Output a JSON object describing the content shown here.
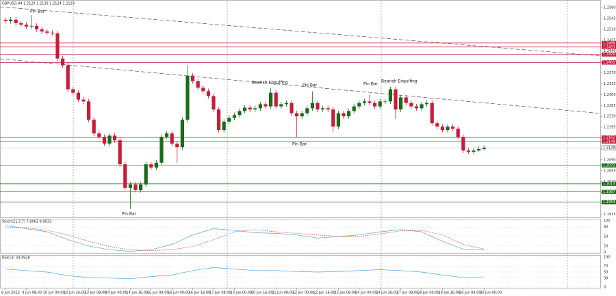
{
  "chart_data": [
    {
      "type": "candlestick",
      "title": "GBPUSD,H4  1.2129 1.2139 1.2124 1.2129",
      "categories": [
        "8 Jun 2022",
        null,
        null,
        null,
        "9 Jun 08:00",
        null,
        null,
        null,
        "10 Jun 00:00",
        null,
        null,
        null,
        "10 Jun 16:00",
        null,
        null,
        null,
        "13 Jun 08:00",
        null,
        null,
        null,
        "14 Jun 00:00",
        null,
        null,
        null,
        "14 Jun 16:00",
        null,
        null,
        null,
        "15 Jun 08:00",
        null,
        null,
        null,
        "16 Jun 00:00",
        null,
        null,
        null,
        "16 Jun 16:00",
        null,
        null,
        null,
        "17 Jun 08:00",
        null,
        null,
        null,
        "20 Jun 00:00",
        null,
        null,
        null,
        "20 Jun 16:00",
        null,
        null,
        null,
        "21 Jun 08:00",
        null,
        null,
        null,
        "22 Jun 00:00",
        null,
        null,
        null,
        "22 Jun 16:00",
        null,
        null,
        null,
        "23 Jun 08:00",
        null,
        null,
        null,
        "24 Jun 00:00",
        null,
        null,
        null,
        "24 Jun 16:00",
        null,
        null,
        null,
        "27 Jun 08:00",
        null,
        null,
        null,
        "28 Jun 00:00",
        null,
        null,
        null,
        "28 Jun 16:00",
        null,
        null,
        null,
        "29 Jun 08:00",
        null,
        null,
        null,
        "30 Jun 00:00"
      ],
      "open": [
        1.254,
        1.2536,
        1.2541,
        1.253,
        1.2525,
        1.2519,
        1.2521,
        1.251,
        1.2503,
        1.2499,
        1.2497,
        1.2416,
        1.2394,
        1.2317,
        1.2306,
        1.2284,
        1.2278,
        1.2219,
        1.2175,
        1.2164,
        1.2142,
        1.2168,
        1.2153,
        1.2076,
        1.2,
        1.2011,
        1.1993,
        1.2011,
        1.2076,
        1.2065,
        1.2081,
        1.2164,
        1.2175,
        1.2142,
        1.2131,
        1.2219,
        1.2361,
        1.2343,
        1.2322,
        1.2311,
        1.2295,
        1.2252,
        1.2186,
        1.2213,
        1.2225,
        1.2234,
        1.2247,
        1.2258,
        1.2252,
        1.2256,
        1.2269,
        1.2262,
        1.2306,
        1.2262,
        1.2269,
        1.2273,
        1.224,
        1.223,
        1.224,
        1.2256,
        1.2273,
        1.2252,
        1.2256,
        1.2252,
        1.2197,
        1.224,
        1.223,
        1.2247,
        1.2262,
        1.2273,
        1.2278,
        1.2273,
        1.2262,
        1.2278,
        1.2278,
        1.2317,
        1.2252,
        1.2291,
        1.2273,
        1.2262,
        1.2256,
        1.2269,
        1.2273,
        1.2208,
        1.2197,
        1.2186,
        1.2197,
        1.219,
        1.2164,
        1.212,
        1.2116,
        1.212,
        1.2125
      ],
      "high": [
        1.2548,
        1.2549,
        1.2549,
        1.2538,
        1.2533,
        1.2556,
        1.2529,
        1.2518,
        1.2511,
        1.2507,
        1.2505,
        1.2424,
        1.2402,
        1.2325,
        1.2314,
        1.2292,
        1.2286,
        1.2227,
        1.2183,
        1.2172,
        1.2176,
        1.2176,
        1.2161,
        1.2084,
        1.2019,
        1.2019,
        1.2019,
        1.2084,
        1.2084,
        1.2089,
        1.2172,
        1.2183,
        1.2183,
        1.215,
        1.2227,
        1.2394,
        1.2369,
        1.2351,
        1.233,
        1.2319,
        1.2303,
        1.226,
        1.2221,
        1.2233,
        1.2242,
        1.2255,
        1.2266,
        1.2266,
        1.2264,
        1.2277,
        1.2277,
        1.232,
        1.2314,
        1.2277,
        1.2281,
        1.2281,
        1.2248,
        1.2248,
        1.2264,
        1.231,
        1.2281,
        1.2264,
        1.2264,
        1.226,
        1.2248,
        1.2248,
        1.2255,
        1.227,
        1.2281,
        1.2286,
        1.23,
        1.2281,
        1.2286,
        1.2286,
        1.2325,
        1.2325,
        1.2299,
        1.2299,
        1.2281,
        1.227,
        1.2277,
        1.2281,
        1.2281,
        1.2216,
        1.2205,
        1.2205,
        1.2205,
        1.2198,
        1.2172,
        1.2128,
        1.2128,
        1.2133,
        1.2137
      ],
      "low": [
        1.2528,
        1.2528,
        1.2522,
        1.2517,
        1.2511,
        1.2511,
        1.2502,
        1.2495,
        1.2491,
        1.2489,
        1.2408,
        1.2386,
        1.2309,
        1.2298,
        1.2276,
        1.227,
        1.2211,
        1.2167,
        1.2156,
        1.2134,
        1.2134,
        1.2145,
        1.2068,
        1.1992,
        1.1932,
        1.1985,
        1.1985,
        1.2003,
        1.2057,
        1.2057,
        1.2073,
        1.2156,
        1.2134,
        1.208,
        1.2123,
        1.2211,
        1.2335,
        1.2314,
        1.2303,
        1.2287,
        1.2244,
        1.2178,
        1.2178,
        1.2205,
        1.2217,
        1.2226,
        1.2239,
        1.2244,
        1.2244,
        1.2248,
        1.2254,
        1.2254,
        1.2254,
        1.2254,
        1.2261,
        1.2232,
        1.2164,
        1.2222,
        1.2232,
        1.2248,
        1.2244,
        1.2244,
        1.2244,
        1.218,
        1.2189,
        1.2222,
        1.2222,
        1.2239,
        1.2254,
        1.2265,
        1.2265,
        1.2254,
        1.2254,
        1.227,
        1.227,
        1.2222,
        1.2244,
        1.2265,
        1.2254,
        1.2248,
        1.2248,
        1.2261,
        1.22,
        1.2189,
        1.2178,
        1.2178,
        1.2182,
        1.2156,
        1.2112,
        1.2108,
        1.2108,
        1.2117,
        1.2121
      ],
      "close": [
        1.2536,
        1.2541,
        1.253,
        1.2525,
        1.2519,
        1.2521,
        1.251,
        1.2503,
        1.2499,
        1.2497,
        1.2416,
        1.2394,
        1.2317,
        1.2306,
        1.2284,
        1.2278,
        1.2219,
        1.2175,
        1.2164,
        1.2142,
        1.2168,
        1.2153,
        1.2076,
        1.2,
        1.2011,
        1.1993,
        1.2011,
        1.2076,
        1.2065,
        1.2081,
        1.2164,
        1.2175,
        1.2142,
        1.2131,
        1.2219,
        1.2361,
        1.2343,
        1.2322,
        1.2311,
        1.2295,
        1.2252,
        1.2186,
        1.2213,
        1.2225,
        1.2234,
        1.2247,
        1.2258,
        1.2252,
        1.2256,
        1.2269,
        1.2262,
        1.2306,
        1.2262,
        1.2269,
        1.2273,
        1.224,
        1.223,
        1.224,
        1.2256,
        1.2273,
        1.2252,
        1.2256,
        1.2252,
        1.2197,
        1.224,
        1.223,
        1.2247,
        1.2262,
        1.2273,
        1.2278,
        1.2273,
        1.2262,
        1.2278,
        1.2278,
        1.2317,
        1.2252,
        1.2291,
        1.2273,
        1.2262,
        1.2256,
        1.2269,
        1.2273,
        1.2208,
        1.2197,
        1.2186,
        1.2197,
        1.219,
        1.2164,
        1.212,
        1.2116,
        1.212,
        1.2125,
        1.2129
      ],
      "up_color": "#1a6b1a",
      "down_color": "#c41e3a",
      "ylim": [
        1.1905,
        1.2602
      ],
      "yticks": [
        {
          "value": 1.258,
          "label": "1.2580"
        },
        1.2545,
        {
          "value": 1.251,
          "label": "1.2510"
        },
        1.2475,
        {
          "value": 1.244,
          "label": "1.2440"
        },
        1.2405,
        {
          "value": 1.237,
          "label": "1.2370"
        },
        1.2335,
        {
          "value": 1.23,
          "label": "1.2300"
        },
        1.2265,
        {
          "value": 1.223,
          "label": "1.2230"
        },
        1.2195,
        {
          "value": 1.216,
          "label": "1.2160"
        },
        1.2125,
        {
          "value": 1.209,
          "label": "1.2090"
        },
        1.2055,
        {
          "value": 1.202,
          "label": "1.2020"
        },
        1.1985,
        {
          "value": 1.195,
          "label": "1.1950"
        },
        1.1915
      ],
      "levels": [
        {
          "value": 1.2466,
          "color": "#c41e3a"
        },
        {
          "value": 1.2453,
          "color": "#c41e3a"
        },
        {
          "value": 1.2429,
          "color": "#c41e3a"
        },
        {
          "value": 1.2403,
          "color": "#c41e3a"
        },
        {
          "value": 1.2162,
          "color": "#c41e3a"
        },
        {
          "value": 1.2149,
          "color": "#c41e3a"
        },
        {
          "value": 1.2072,
          "color": "#1a6b1a"
        },
        {
          "value": 1.2013,
          "color": "#1a6b1a"
        },
        {
          "value": 1.1987,
          "color": "#1a6b1a"
        },
        {
          "value": 1.1954,
          "color": "#1a6b1a"
        }
      ],
      "last": 1.2129,
      "annotations": [
        "Pin Bar",
        "Pin Bar",
        "Bearish Engulfing",
        "Pin Bar",
        "Pin Bar",
        "Pin Bar",
        "Bearish Engulfing"
      ]
    },
    {
      "type": "line",
      "title": "Stoch(21,7,7) 7.8062 9.9633",
      "series": [
        {
          "color": "#5aa0d0",
          "values": [
            85,
            75,
            65,
            40,
            20,
            8,
            3,
            8,
            25,
            55,
            75,
            70,
            62,
            60,
            55,
            45,
            50,
            55,
            65,
            72,
            65,
            35,
            10,
            8
          ]
        },
        {
          "color": "#d03030",
          "dashed": true,
          "values": [
            80,
            78,
            70,
            55,
            35,
            18,
            8,
            5,
            8,
            18,
            40,
            65,
            72,
            65,
            60,
            55,
            50,
            50,
            58,
            68,
            70,
            55,
            25,
            10
          ]
        }
      ],
      "ylim": [
        0,
        100
      ],
      "yticks": [
        0,
        20,
        50,
        80,
        100
      ]
    },
    {
      "type": "line",
      "title": "RSI(14) 34.4928",
      "series": [
        {
          "color": "#5aa0d0",
          "values": [
            60,
            55,
            50,
            38,
            32,
            30,
            28,
            35,
            40,
            55,
            65,
            60,
            55,
            55,
            52,
            50,
            52,
            55,
            58,
            55,
            50,
            40,
            32,
            34
          ]
        }
      ],
      "ylim": [
        0,
        100
      ],
      "yticks": [
        0,
        30,
        50,
        70,
        100
      ]
    }
  ]
}
